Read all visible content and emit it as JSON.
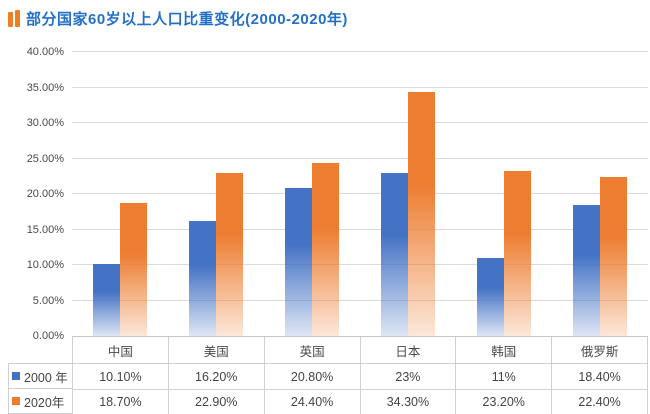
{
  "header": {
    "title": "部分国家60岁以上人口比重变化(2000-2020年)"
  },
  "colors": {
    "title_text": "#2470C5",
    "title_icon": "#EE7F22",
    "series_2000": "#4472C4",
    "series_2020": "#ED7D31",
    "gridline": "#DADADA",
    "table_border": "#CFCFCF"
  },
  "chart_data": {
    "type": "bar",
    "title": "部分国家60岁以上人口比重变化(2000-2020年)",
    "categories": [
      "中国",
      "美国",
      "英国",
      "日本",
      "韩国",
      "俄罗斯"
    ],
    "series": [
      {
        "name": "2000 年",
        "color": "#4472C4",
        "values": [
          10.1,
          16.2,
          20.8,
          23,
          11,
          18.4
        ],
        "labels": [
          "10.10%",
          "16.20%",
          "20.80%",
          "23%",
          "11%",
          "18.40%"
        ]
      },
      {
        "name": "2020年",
        "color": "#ED7D31",
        "values": [
          18.7,
          22.9,
          24.4,
          34.3,
          23.2,
          22.4
        ],
        "labels": [
          "18.70%",
          "22.90%",
          "24.40%",
          "34.30%",
          "23.20%",
          "22.40%"
        ]
      }
    ],
    "y_axis": {
      "min": 0,
      "max": 40,
      "step": 5,
      "tick_labels": [
        "0.00%",
        "5.00%",
        "10.00%",
        "15.00%",
        "20.00%",
        "25.00%",
        "30.00%",
        "35.00%",
        "40.00%"
      ]
    },
    "xlabel": "",
    "ylabel": "",
    "grid": true,
    "legend_position": "data-table-left",
    "bar_style": "vertical gradient, solid at top fading to light at bottom"
  }
}
